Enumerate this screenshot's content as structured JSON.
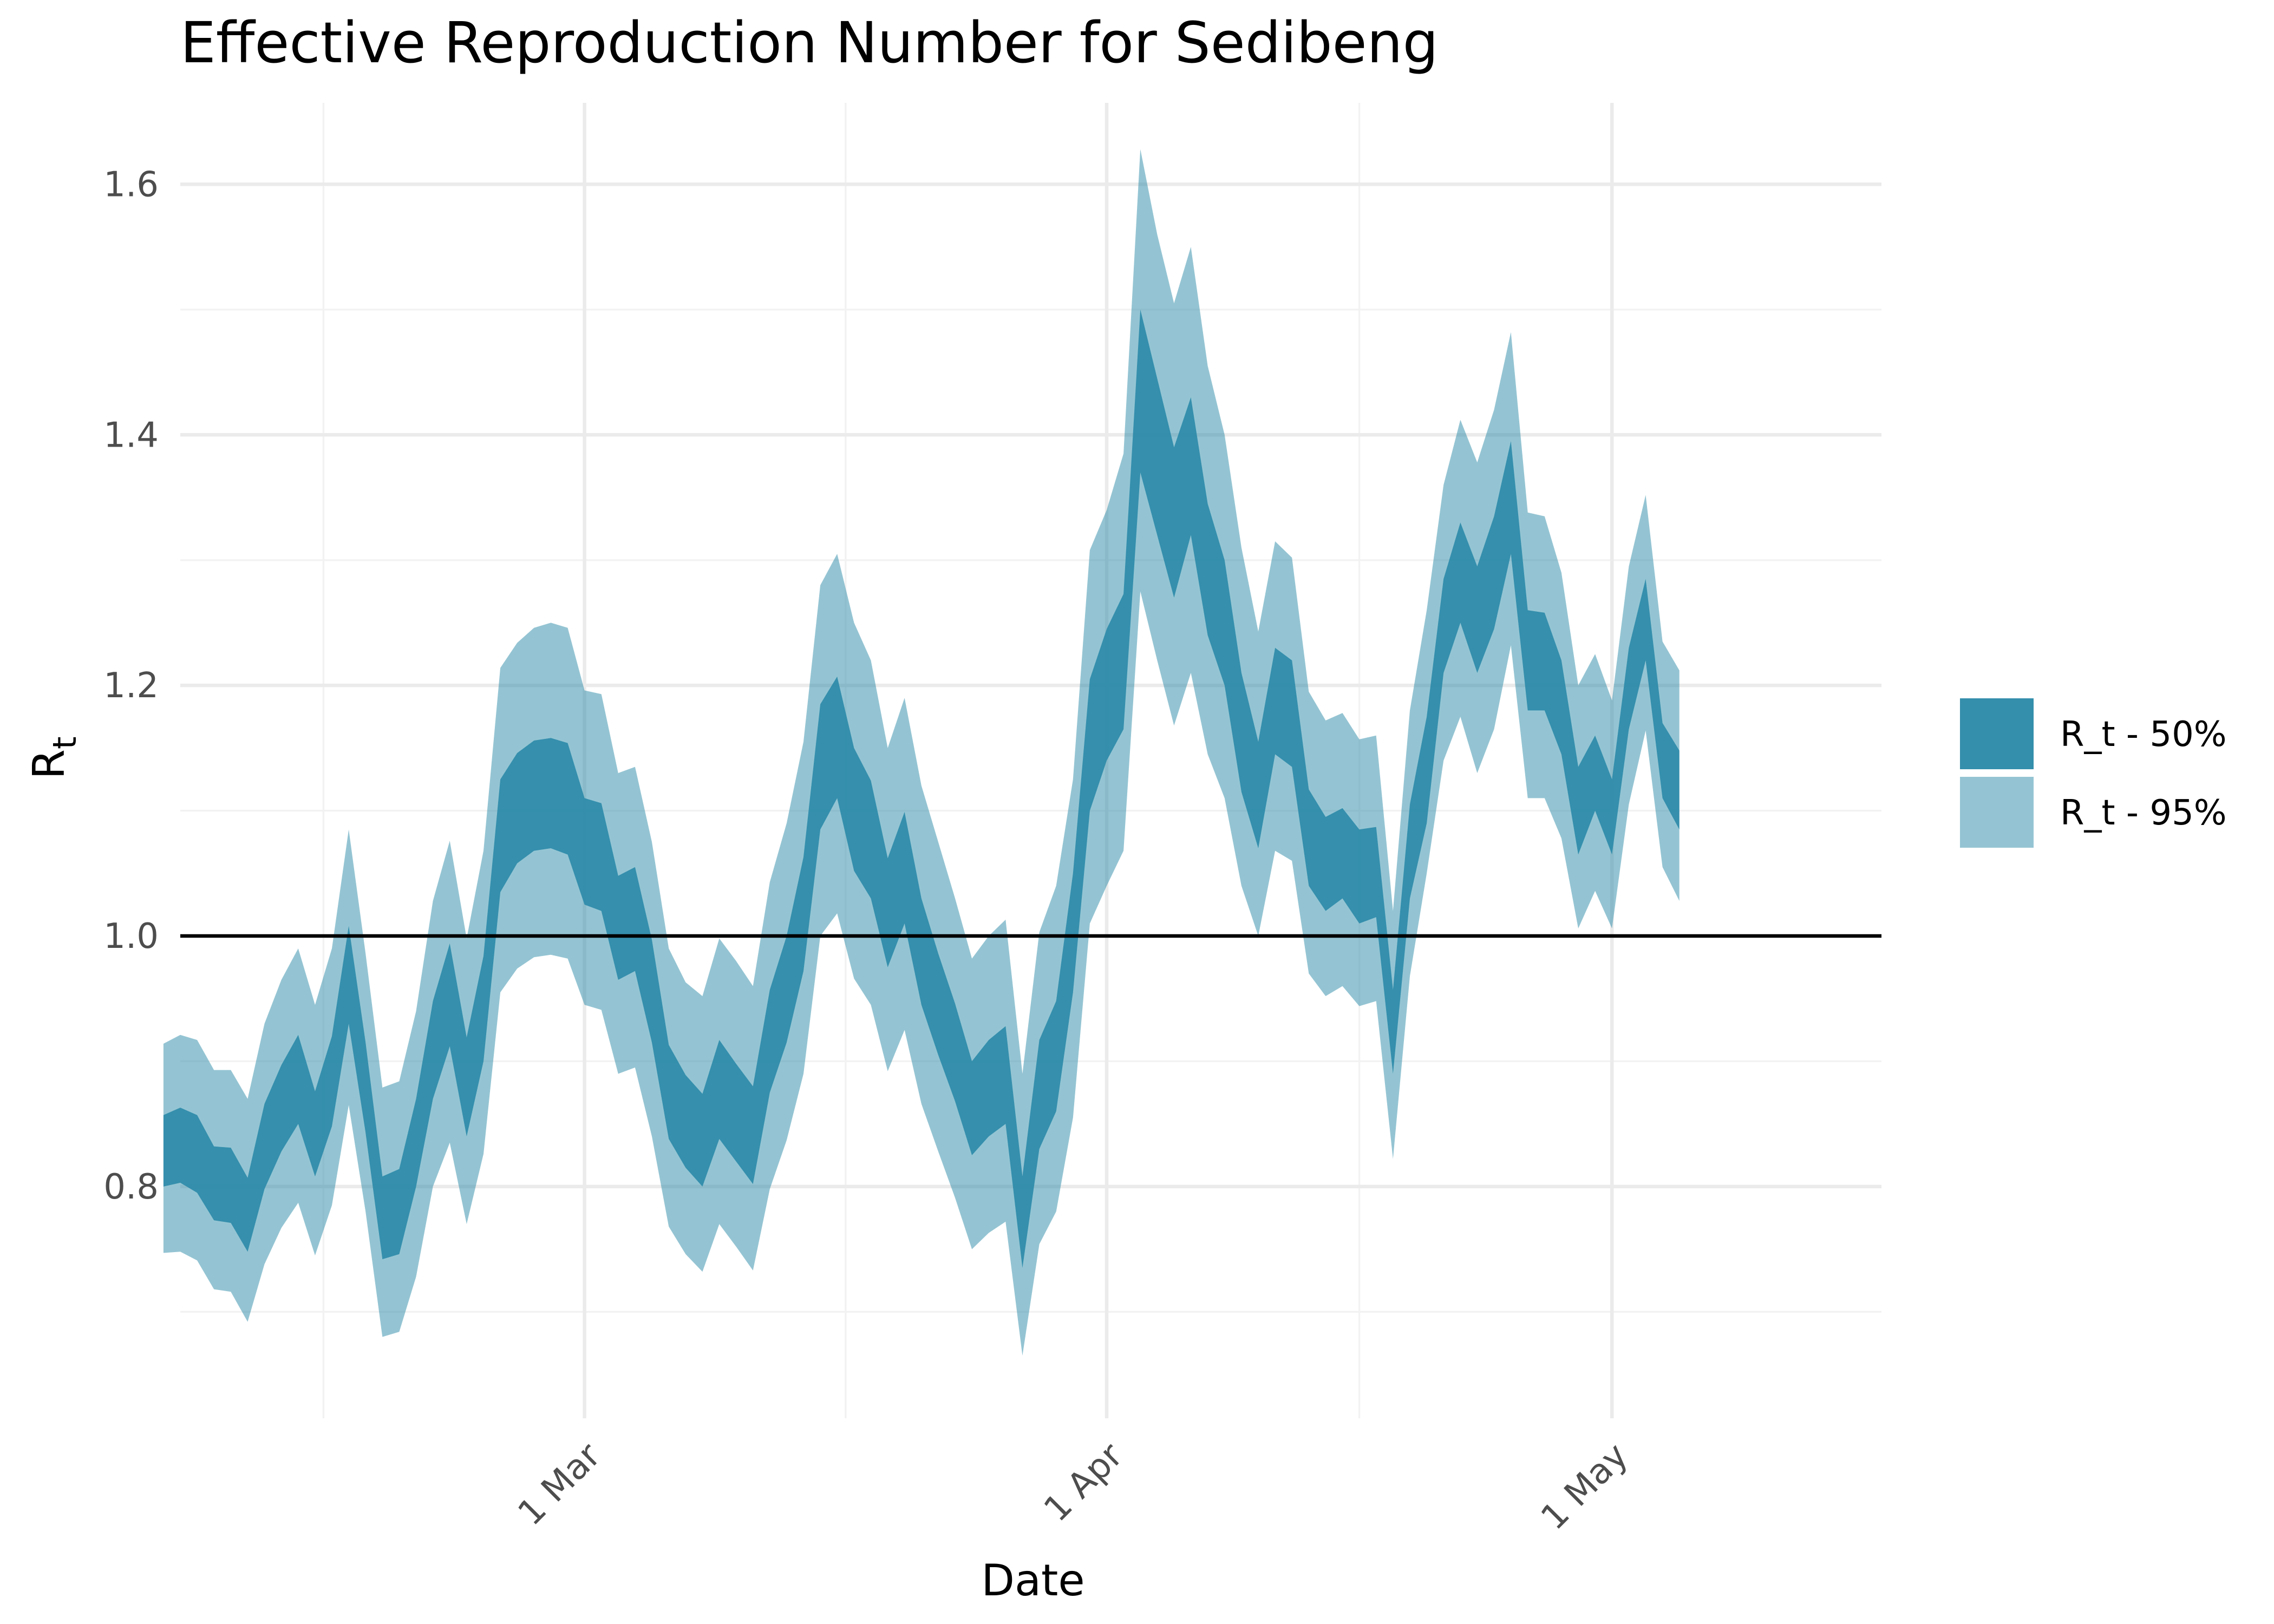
{
  "chart_data": {
    "type": "area",
    "title": "Effective Reproduction Number for Sedibeng",
    "xlabel": "Date",
    "ylabel_main": "R",
    "ylabel_sub": "t",
    "xlim": [
      "2020-02-06",
      "2020-05-17"
    ],
    "ylim": [
      0.615,
      1.665
    ],
    "x_ticks": [
      {
        "date": "2020-03-01",
        "label": "1 Mar"
      },
      {
        "date": "2020-04-01",
        "label": "1 Apr"
      },
      {
        "date": "2020-05-01",
        "label": "1 May"
      }
    ],
    "y_ticks": [
      0.8,
      1.0,
      1.2,
      1.4,
      1.6
    ],
    "reference_line": 1.0,
    "grid": true,
    "legend_position": "right",
    "colors": {
      "band_50": "#2a8aa8",
      "band_95": "#2a8aa8",
      "reference_line": "#000000"
    },
    "series": [
      {
        "name": "R_t - 50%",
        "start_date": "2020-02-05",
        "lower": [
          0.8,
          0.803,
          0.795,
          0.773,
          0.771,
          0.748,
          0.798,
          0.828,
          0.85,
          0.808,
          0.848,
          0.93,
          0.843,
          0.742,
          0.746,
          0.8,
          0.87,
          0.912,
          0.84,
          0.9,
          1.035,
          1.058,
          1.068,
          1.07,
          1.065,
          1.025,
          1.02,
          0.965,
          0.972,
          0.915,
          0.838,
          0.815,
          0.8,
          0.838,
          0.82,
          0.802,
          0.875,
          0.915,
          0.972,
          1.085,
          1.11,
          1.052,
          1.03,
          0.975,
          1.01,
          0.945,
          0.905,
          0.868,
          0.825,
          0.84,
          0.85,
          0.735,
          0.83,
          0.86,
          0.955,
          1.1,
          1.14,
          1.165,
          1.37,
          1.32,
          1.27,
          1.32,
          1.24,
          1.2,
          1.115,
          1.07,
          1.145,
          1.135,
          1.04,
          1.02,
          1.03,
          1.01,
          1.015,
          0.89,
          1.03,
          1.09,
          1.21,
          1.25,
          1.21,
          1.245,
          1.305,
          1.18,
          1.18,
          1.145,
          1.065,
          1.1,
          1.065,
          1.165,
          1.22,
          1.11,
          1.085
        ],
        "upper": [
          0.857,
          0.863,
          0.857,
          0.832,
          0.831,
          0.807,
          0.866,
          0.897,
          0.921,
          0.876,
          0.92,
          1.008,
          0.915,
          0.808,
          0.814,
          0.87,
          0.948,
          0.994,
          0.919,
          0.984,
          1.125,
          1.146,
          1.156,
          1.158,
          1.154,
          1.11,
          1.106,
          1.048,
          1.055,
          0.997,
          0.913,
          0.889,
          0.874,
          0.917,
          0.898,
          0.88,
          0.957,
          1.0,
          1.063,
          1.185,
          1.207,
          1.15,
          1.124,
          1.062,
          1.099,
          1.03,
          0.986,
          0.946,
          0.9,
          0.917,
          0.928,
          0.808,
          0.917,
          0.948,
          1.05,
          1.205,
          1.245,
          1.273,
          1.5,
          1.445,
          1.39,
          1.43,
          1.345,
          1.3,
          1.21,
          1.155,
          1.23,
          1.22,
          1.117,
          1.095,
          1.102,
          1.085,
          1.087,
          0.957,
          1.105,
          1.175,
          1.285,
          1.33,
          1.295,
          1.335,
          1.395,
          1.26,
          1.258,
          1.22,
          1.135,
          1.16,
          1.125,
          1.23,
          1.285,
          1.17,
          1.148
        ]
      },
      {
        "name": "R_t - 95%",
        "start_date": "2020-02-05",
        "lower": [
          0.747,
          0.748,
          0.741,
          0.718,
          0.716,
          0.692,
          0.738,
          0.767,
          0.787,
          0.745,
          0.785,
          0.865,
          0.78,
          0.68,
          0.684,
          0.728,
          0.8,
          0.835,
          0.77,
          0.826,
          0.955,
          0.974,
          0.983,
          0.985,
          0.982,
          0.945,
          0.941,
          0.89,
          0.895,
          0.84,
          0.768,
          0.746,
          0.732,
          0.77,
          0.752,
          0.733,
          0.798,
          0.837,
          0.89,
          1.0,
          1.018,
          0.966,
          0.945,
          0.892,
          0.925,
          0.866,
          0.828,
          0.791,
          0.75,
          0.763,
          0.772,
          0.665,
          0.754,
          0.78,
          0.855,
          1.01,
          1.04,
          1.068,
          1.275,
          1.22,
          1.168,
          1.21,
          1.145,
          1.11,
          1.04,
          1.0,
          1.068,
          1.06,
          0.97,
          0.952,
          0.96,
          0.944,
          0.948,
          0.822,
          0.968,
          1.05,
          1.14,
          1.175,
          1.13,
          1.165,
          1.232,
          1.11,
          1.11,
          1.078,
          1.006,
          1.036,
          1.006,
          1.105,
          1.164,
          1.055,
          1.028
        ],
        "upper": [
          0.914,
          0.921,
          0.917,
          0.893,
          0.893,
          0.87,
          0.93,
          0.965,
          0.99,
          0.945,
          0.99,
          1.085,
          0.986,
          0.879,
          0.884,
          0.94,
          1.028,
          1.076,
          0.998,
          1.068,
          1.214,
          1.234,
          1.246,
          1.25,
          1.246,
          1.196,
          1.193,
          1.13,
          1.135,
          1.075,
          0.99,
          0.963,
          0.952,
          0.998,
          0.98,
          0.96,
          1.043,
          1.09,
          1.155,
          1.28,
          1.305,
          1.25,
          1.22,
          1.15,
          1.19,
          1.12,
          1.075,
          1.03,
          0.982,
          1.0,
          1.013,
          0.89,
          1.003,
          1.04,
          1.125,
          1.308,
          1.34,
          1.385,
          1.628,
          1.56,
          1.505,
          1.55,
          1.455,
          1.4,
          1.31,
          1.243,
          1.315,
          1.302,
          1.195,
          1.172,
          1.178,
          1.157,
          1.16,
          1.02,
          1.18,
          1.26,
          1.36,
          1.412,
          1.378,
          1.42,
          1.482,
          1.338,
          1.335,
          1.29,
          1.2,
          1.225,
          1.188,
          1.295,
          1.352,
          1.235,
          1.212
        ]
      }
    ]
  }
}
